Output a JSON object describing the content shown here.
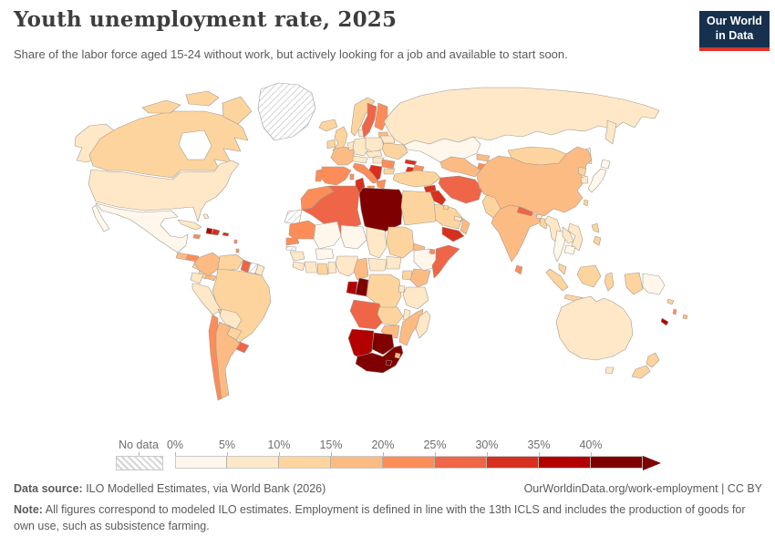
{
  "header": {
    "title": "Youth unemployment rate, 2025",
    "subtitle": "Share of the labor force aged 15-24 without work, but actively looking for a job and available to start soon."
  },
  "logo": {
    "line1": "Our World",
    "line2": "in Data"
  },
  "legend": {
    "no_data_label": "No data",
    "bins": [
      {
        "label": "0%",
        "color": "#fff7ec"
      },
      {
        "label": "5%",
        "color": "#fee8c8"
      },
      {
        "label": "10%",
        "color": "#fdd49e"
      },
      {
        "label": "15%",
        "color": "#fdbb84"
      },
      {
        "label": "20%",
        "color": "#fc8d59"
      },
      {
        "label": "25%",
        "color": "#ef6548"
      },
      {
        "label": "30%",
        "color": "#d7301f"
      },
      {
        "label": "35%",
        "color": "#b30000"
      },
      {
        "label": "40%",
        "color": "#7f0000"
      }
    ]
  },
  "footer": {
    "source_label": "Data source:",
    "source_text": " ILO Modelled Estimates, via World Bank (2026)",
    "link_text": "OurWorldinData.org/work-employment | CC BY",
    "note_label": "Note:",
    "note_text": " All figures correspond to modeled ILO estimates. Employment is defined in line with the 13th ICLS and includes the production of goods for own use, such as subsistence farming."
  },
  "chart_data": {
    "type": "choropleth_map",
    "title": "Youth unemployment rate, 2025",
    "unit": "% of labor force aged 15-24",
    "legend_position": "bottom",
    "bin_labels": [
      "0-5%",
      "5-10%",
      "10-15%",
      "15-20%",
      "20-25%",
      "25-30%",
      "30-35%",
      "35-40%",
      "40%+"
    ],
    "bin_colors": [
      "#fff7ec",
      "#fee8c8",
      "#fdd49e",
      "#fdbb84",
      "#fc8d59",
      "#ef6548",
      "#d7301f",
      "#b30000",
      "#7f0000"
    ],
    "no_data_label": "No data",
    "countries": {
      "united-states": "5-10%",
      "canada": "10-15%",
      "greenland": "No data",
      "iceland": "10-15%",
      "mexico": "0-5%",
      "guatemala": "15-20%",
      "honduras": "20-25%",
      "nicaragua": "10-15%",
      "costa-rica": "10-15%",
      "panama": "15-20%",
      "cuba": "5-10%",
      "jamaica": "20-25%",
      "haiti": "35-40%",
      "dominican-republic": "30-35%",
      "puerto-rico": "30-35%",
      "lesser-antilles": "20-25%",
      "bahamas": "5-10%",
      "colombia": "15-20%",
      "venezuela": "10-15%",
      "guyana": "25-30%",
      "suriname": "No data",
      "french-guiana": "5-10%",
      "ecuador": "5-10%",
      "peru": "5-10%",
      "brazil": "10-15%",
      "bolivia": "5-10%",
      "paraguay": "10-15%",
      "chile": "20-25%",
      "argentina": "15-20%",
      "uruguay": "25-30%",
      "ireland": "10-15%",
      "united-kingdom": "10-15%",
      "portugal": "20-25%",
      "spain": "20-25%",
      "france": "15-20%",
      "benelux": "5-10%",
      "germany": "5-10%",
      "denmark": "5-10%",
      "norway": "10-15%",
      "sweden": "25-30%",
      "finland": "20-25%",
      "baltic-states": "15-20%",
      "poland": "5-10%",
      "czechia-slovakia": "5-10%",
      "alpine-states": "5-10%",
      "hungary": "5-10%",
      "romania": "20-25%",
      "western-balkans": "30-35%",
      "bulgaria": "10-15%",
      "greece": "20-25%",
      "italy": "20-25%",
      "ukraine": "10-15%",
      "belarus": "5-10%",
      "russia": "5-10%",
      "kazakhstan": "0-5%",
      "uzbekistan-turkmenistan": "15-20%",
      "kyrgyzstan": "15-20%",
      "tajikistan": "20-25%",
      "georgia": "30-35%",
      "armenia": "30-35%",
      "azerbaijan": "20-25%",
      "turkey": "10-15%",
      "syria": "30-35%",
      "iraq": "30-35%",
      "jordan": "30-35%",
      "saudi-arabia": "10-15%",
      "yemen": "30-35%",
      "oman": "15-20%",
      "uae": "5-10%",
      "kuwait": "10-15%",
      "iran": "25-30%",
      "afghanistan": "10-15%",
      "pakistan": "10-15%",
      "india": "15-20%",
      "nepal": "25-30%",
      "bhutan": "5-10%",
      "bangladesh": "10-15%",
      "sri-lanka": "20-25%",
      "myanmar": "5-10%",
      "thailand": "0-5%",
      "laos": "5-10%",
      "vietnam": "5-10%",
      "cambodia": "0-5%",
      "malaysia": "10-15%",
      "mongolia": "10-15%",
      "china": "15-20%",
      "taiwan": "10-15%",
      "north-korea": "10-15%",
      "south-korea": "5-10%",
      "japan": "0-5%",
      "philippines": "10-15%",
      "indonesia": "10-15%",
      "papua-new-guinea": "0-5%",
      "solomon-islands": "10-15%",
      "vanuatu": "20-25%",
      "new-caledonia": "35-40%",
      "fiji": "15-20%",
      "australia": "5-10%",
      "new-zealand": "10-15%",
      "western-sahara": "No data",
      "morocco": "20-25%",
      "algeria": "25-30%",
      "tunisia": "30-35%",
      "libya": "40%+",
      "egypt": "10-15%",
      "mauritania": "20-25%",
      "mali": "0-5%",
      "niger": "0-5%",
      "chad": "5-10%",
      "sudan": "10-15%",
      "eritrea": "15-20%",
      "ethiopia": "0-5%",
      "djibouti": "20-25%",
      "somalia": "25-30%",
      "senegal": "20-25%",
      "gambia": "No data",
      "guinea": "5-10%",
      "sierra-leone-liberia": "5-10%",
      "cote-divoire": "5-10%",
      "ghana": "10-15%",
      "togo-benin": "5-10%",
      "burkina-faso": "0-5%",
      "nigeria": "5-10%",
      "cameroon": "15-20%",
      "central-african-republic": "5-10%",
      "south-sudan": "5-10%",
      "uganda": "10-15%",
      "kenya": "15-20%",
      "gabon": "35-40%",
      "congo": "40%+",
      "dr-congo": "10-15%",
      "rwanda-burundi": "5-10%",
      "tanzania": "5-10%",
      "angola": "25-30%",
      "zambia": "10-15%",
      "malawi": "5-10%",
      "mozambique": "15-20%",
      "zimbabwe": "15-20%",
      "namibia": "35-40%",
      "botswana": "40%+",
      "south-africa": "40%+",
      "lesotho": "40%+",
      "eswatini": "15-20%",
      "madagascar": "5-10%"
    }
  }
}
